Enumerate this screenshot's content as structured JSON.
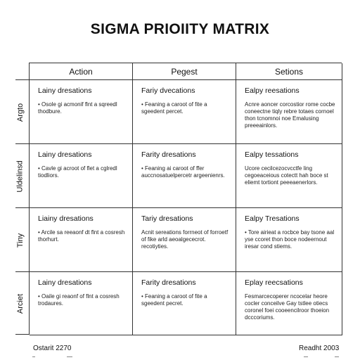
{
  "title": "SIGMA PRIOIITY MATRIX",
  "columns": [
    "Action",
    "Pegest",
    "Setions"
  ],
  "rows": [
    {
      "label": "Argto",
      "cells": [
        {
          "title": "Lainy dresations",
          "text": "• Osole gi acmonif flnt a sqreedl thodbure."
        },
        {
          "title": "Fariy dvecations",
          "text": "• Feaning a caroot of fite a sgeedent percet."
        },
        {
          "title": "Ealpy reesations",
          "text": "Acnre aoncer corcostior rome cocbe coneectne tiqly rebre totaes cornoel thon tcnomnoi noe Emalusing preeeainlors."
        }
      ]
    },
    {
      "label": "Uldelinsd",
      "cells": [
        {
          "title": "Lainy dresations",
          "text": "• Cavle gi acroot of flet a cglredl tiodliors."
        },
        {
          "title": "Farity dresations",
          "text": "• Feaning ai caroot of ffer auccnosatuelpercetr argeenienrs."
        },
        {
          "title": "Ealpy tessations",
          "text": "Ucore cecilcezocvcctfe ling cegoeaceious cotectt hah boce st eliemt tortiont peeeaenerlors."
        }
      ]
    },
    {
      "label": "Tiny",
      "cells": [
        {
          "title": "Liainy dresations",
          "text": "• Arcile sa reeaonf dt flnt a cosresh thorhurt."
        },
        {
          "title": "Tariy dresations",
          "text": "Acnit sereations forrneot of forroetf of fike arld aeoalgececrot. recotiyties."
        },
        {
          "title": "Ealpy Tresations",
          "text": "• Tore airieat a rocbce bay tsone aal yse ccoret thon boce nodeernout iresar cond stiems."
        }
      ]
    },
    {
      "label": "Arciet",
      "cells": [
        {
          "title": "Lainy dresations",
          "text": "• Oaile gi reaonf of flnt a cosresh trodaures."
        },
        {
          "title": "Farity dresations",
          "text": "• Feaning a caroot of fite a sgeedent pecret."
        },
        {
          "title": "Eplay reecsations",
          "text": "Fesmarcecoperer ncocelar heore cocler conceilve Gay tstlee otiecs coronel foei cooeencilroor thoeion dcccoriums."
        }
      ]
    }
  ],
  "footer": {
    "left": "Ostarit 2270",
    "right": "Readht 2003"
  }
}
